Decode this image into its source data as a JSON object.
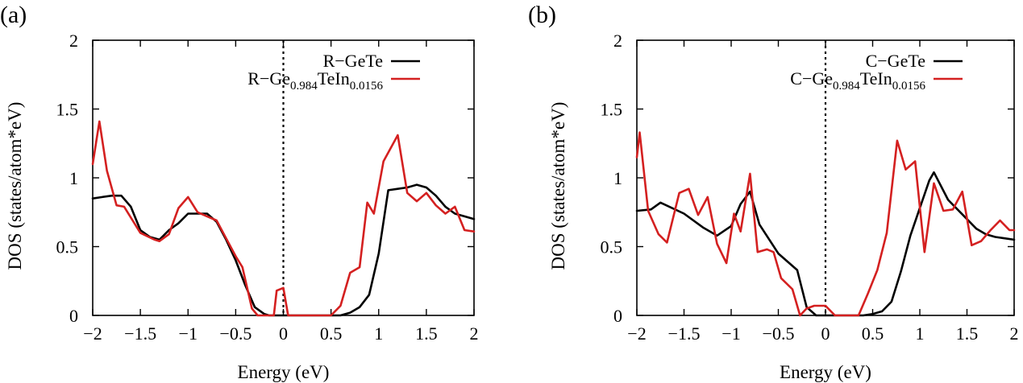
{
  "chart_data": [
    {
      "type": "line",
      "panel_label": "(a)",
      "xlabel": "Energy (eV)",
      "ylabel": "DOS (states/atom*eV)",
      "xlim": [
        -2,
        2
      ],
      "ylim": [
        0,
        2
      ],
      "x_ticks": [
        "−2",
        "−1.5",
        "−1",
        "−0.5",
        "0",
        "0.5",
        "1",
        "1.5",
        "2"
      ],
      "y_ticks": [
        "0",
        "0.5",
        "1",
        "1.5",
        "2"
      ],
      "fermi_level": 0,
      "grid": false,
      "legend_position": "top-right",
      "series": [
        {
          "name": "R−GeTe",
          "color": "#000000",
          "x": [
            -2.0,
            -1.9,
            -1.8,
            -1.7,
            -1.6,
            -1.5,
            -1.4,
            -1.3,
            -1.2,
            -1.1,
            -1.0,
            -0.9,
            -0.8,
            -0.7,
            -0.6,
            -0.5,
            -0.4,
            -0.3,
            -0.2,
            -0.15,
            -0.1,
            0.0,
            0.2,
            0.4,
            0.5,
            0.6,
            0.7,
            0.8,
            0.9,
            1.0,
            1.1,
            1.2,
            1.3,
            1.4,
            1.5,
            1.6,
            1.7,
            1.8,
            1.9,
            2.0
          ],
          "y": [
            0.85,
            0.86,
            0.87,
            0.87,
            0.79,
            0.62,
            0.57,
            0.55,
            0.62,
            0.67,
            0.74,
            0.74,
            0.74,
            0.68,
            0.55,
            0.4,
            0.22,
            0.06,
            0.01,
            0.0,
            0.0,
            0.0,
            0.0,
            0.0,
            0.0,
            0.0,
            0.02,
            0.06,
            0.15,
            0.45,
            0.91,
            0.92,
            0.93,
            0.95,
            0.93,
            0.87,
            0.79,
            0.74,
            0.72,
            0.7
          ]
        },
        {
          "name": "R−Ge0.984TeIn0.0156",
          "name_parts": [
            "R−Ge",
            "0.984",
            "TeIn",
            "0.0156"
          ],
          "color": "#d42020",
          "x": [
            -2.0,
            -1.93,
            -1.85,
            -1.75,
            -1.67,
            -1.5,
            -1.35,
            -1.3,
            -1.2,
            -1.1,
            -1.0,
            -0.9,
            -0.8,
            -0.7,
            -0.6,
            -0.5,
            -0.43,
            -0.33,
            -0.27,
            -0.2,
            -0.1,
            -0.07,
            0.0,
            0.05,
            0.1,
            0.3,
            0.5,
            0.6,
            0.7,
            0.8,
            0.88,
            0.95,
            1.05,
            1.2,
            1.3,
            1.4,
            1.5,
            1.6,
            1.7,
            1.8,
            1.9,
            2.0
          ],
          "y": [
            1.1,
            1.41,
            1.05,
            0.8,
            0.79,
            0.6,
            0.55,
            0.54,
            0.59,
            0.78,
            0.86,
            0.75,
            0.72,
            0.69,
            0.56,
            0.43,
            0.35,
            0.05,
            0.0,
            0.0,
            0.0,
            0.18,
            0.2,
            0.0,
            0.0,
            0.0,
            0.0,
            0.07,
            0.31,
            0.35,
            0.82,
            0.74,
            1.12,
            1.31,
            0.89,
            0.83,
            0.89,
            0.8,
            0.74,
            0.79,
            0.62,
            0.61
          ]
        }
      ]
    },
    {
      "type": "line",
      "panel_label": "(b)",
      "xlabel": "Energy (eV)",
      "ylabel": "DOS (states/atom*eV)",
      "xlim": [
        -2,
        2
      ],
      "ylim": [
        0,
        2
      ],
      "x_ticks": [
        "−2",
        "−1.5",
        "−1",
        "−0.5",
        "0",
        "0.5",
        "1",
        "1.5",
        "2"
      ],
      "y_ticks": [
        "0",
        "0.5",
        "1",
        "1.5",
        "2"
      ],
      "fermi_level": 0,
      "grid": false,
      "legend_position": "top-right",
      "series": [
        {
          "name": "C−GeTe",
          "color": "#000000",
          "x": [
            -2.0,
            -1.85,
            -1.75,
            -1.5,
            -1.3,
            -1.15,
            -1.0,
            -0.9,
            -0.8,
            -0.7,
            -0.5,
            -0.3,
            -0.2,
            -0.1,
            0.0,
            0.2,
            0.4,
            0.5,
            0.6,
            0.7,
            0.8,
            0.9,
            1.0,
            1.1,
            1.15,
            1.3,
            1.5,
            1.6,
            1.7,
            1.8,
            1.9,
            2.0
          ],
          "y": [
            0.76,
            0.77,
            0.82,
            0.74,
            0.64,
            0.58,
            0.65,
            0.81,
            0.9,
            0.66,
            0.45,
            0.33,
            0.06,
            0.0,
            0.0,
            0.0,
            0.0,
            0.01,
            0.03,
            0.1,
            0.32,
            0.58,
            0.78,
            0.98,
            1.04,
            0.84,
            0.7,
            0.63,
            0.59,
            0.57,
            0.56,
            0.55
          ]
        },
        {
          "name": "C−Ge0.984TeIn0.0156",
          "name_parts": [
            "C−Ge",
            "0.984",
            "TeIn",
            "0.0156"
          ],
          "color": "#d42020",
          "x": [
            -2.0,
            -1.97,
            -1.88,
            -1.77,
            -1.68,
            -1.55,
            -1.45,
            -1.35,
            -1.25,
            -1.15,
            -1.05,
            -0.97,
            -0.9,
            -0.8,
            -0.72,
            -0.62,
            -0.55,
            -0.47,
            -0.35,
            -0.27,
            -0.2,
            -0.12,
            -0.05,
            0.0,
            0.1,
            0.2,
            0.35,
            0.45,
            0.55,
            0.65,
            0.76,
            0.85,
            0.95,
            1.05,
            1.15,
            1.25,
            1.35,
            1.45,
            1.55,
            1.65,
            1.75,
            1.85,
            1.95,
            2.0
          ],
          "y": [
            1.15,
            1.33,
            0.76,
            0.59,
            0.53,
            0.89,
            0.92,
            0.73,
            0.86,
            0.52,
            0.38,
            0.74,
            0.61,
            1.03,
            0.46,
            0.48,
            0.46,
            0.27,
            0.19,
            0.0,
            0.05,
            0.07,
            0.07,
            0.07,
            0.0,
            0.0,
            0.0,
            0.16,
            0.33,
            0.6,
            1.27,
            1.06,
            1.12,
            0.46,
            0.96,
            0.76,
            0.77,
            0.9,
            0.51,
            0.54,
            0.62,
            0.69,
            0.62,
            0.62
          ]
        }
      ]
    }
  ]
}
